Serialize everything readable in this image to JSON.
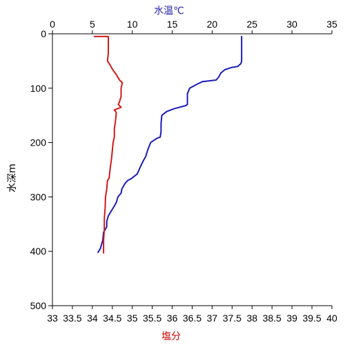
{
  "chart_data": {
    "type": "line",
    "title": "",
    "top_axis": {
      "label": "水温℃",
      "label_color": "#1f1faa",
      "range": [
        0,
        35
      ],
      "ticks": [
        "0",
        "5",
        "10",
        "15",
        "20",
        "25",
        "30",
        "35"
      ]
    },
    "bottom_axis": {
      "label": "塩分",
      "label_color": "#cc0000",
      "range": [
        33,
        40
      ],
      "ticks": [
        "33",
        "33.5",
        "34",
        "34.5",
        "35",
        "35.5",
        "36",
        "36.5",
        "37",
        "37.5",
        "38",
        "38.5",
        "39",
        "39.5",
        "40"
      ]
    },
    "left_axis": {
      "label": "水深m",
      "range": [
        0,
        500
      ],
      "inverted": true,
      "ticks": [
        "0",
        "100",
        "200",
        "300",
        "400",
        "500"
      ]
    },
    "grid": false,
    "series": [
      {
        "color": "#1a1ab8",
        "axis": "top",
        "points": [
          [
            23.7,
            5
          ],
          [
            23.7,
            30
          ],
          [
            23.7,
            50
          ],
          [
            23.6,
            55
          ],
          [
            23.2,
            60
          ],
          [
            22.4,
            62
          ],
          [
            21.6,
            66
          ],
          [
            21.1,
            72
          ],
          [
            20.8,
            80
          ],
          [
            20.5,
            85
          ],
          [
            19.3,
            87
          ],
          [
            18.8,
            88
          ],
          [
            18.2,
            92
          ],
          [
            17.2,
            100
          ],
          [
            16.9,
            110
          ],
          [
            16.9,
            130
          ],
          [
            16.7,
            132
          ],
          [
            15.2,
            138
          ],
          [
            14.3,
            143
          ],
          [
            13.7,
            150
          ],
          [
            13.6,
            165
          ],
          [
            13.6,
            180
          ],
          [
            13.5,
            190
          ],
          [
            13.1,
            192
          ],
          [
            12.3,
            200
          ],
          [
            11.9,
            215
          ],
          [
            11.7,
            225
          ],
          [
            11.4,
            233
          ],
          [
            11.0,
            245
          ],
          [
            10.6,
            258
          ],
          [
            9.9,
            266
          ],
          [
            9.4,
            270
          ],
          [
            9.1,
            275
          ],
          [
            8.7,
            285
          ],
          [
            8.6,
            293
          ],
          [
            8.2,
            300
          ],
          [
            8.0,
            310
          ],
          [
            7.7,
            318
          ],
          [
            7.4,
            325
          ],
          [
            7.0,
            335
          ],
          [
            6.8,
            345
          ],
          [
            6.8,
            355
          ],
          [
            6.4,
            365
          ],
          [
            6.3,
            380
          ],
          [
            6.0,
            395
          ],
          [
            5.7,
            402
          ]
        ]
      },
      {
        "color": "#d01818",
        "axis": "bottom",
        "points": [
          [
            34.4,
            5
          ],
          [
            34.05,
            5
          ],
          [
            34.05,
            5
          ],
          [
            34.4,
            5
          ],
          [
            34.4,
            35
          ],
          [
            34.38,
            50
          ],
          [
            34.45,
            58
          ],
          [
            34.5,
            65
          ],
          [
            34.6,
            75
          ],
          [
            34.68,
            85
          ],
          [
            34.75,
            90
          ],
          [
            34.72,
            100
          ],
          [
            34.72,
            115
          ],
          [
            34.68,
            125
          ],
          [
            34.65,
            130
          ],
          [
            34.72,
            135
          ],
          [
            34.55,
            140
          ],
          [
            34.6,
            145
          ],
          [
            34.58,
            160
          ],
          [
            34.55,
            175
          ],
          [
            34.55,
            190
          ],
          [
            34.52,
            200
          ],
          [
            34.5,
            215
          ],
          [
            34.48,
            230
          ],
          [
            34.45,
            245
          ],
          [
            34.42,
            265
          ],
          [
            34.38,
            270
          ],
          [
            34.36,
            285
          ],
          [
            34.33,
            300
          ],
          [
            34.32,
            320
          ],
          [
            34.3,
            340
          ],
          [
            34.3,
            360
          ],
          [
            34.28,
            380
          ],
          [
            34.28,
            395
          ],
          [
            34.28,
            403
          ]
        ]
      }
    ]
  }
}
